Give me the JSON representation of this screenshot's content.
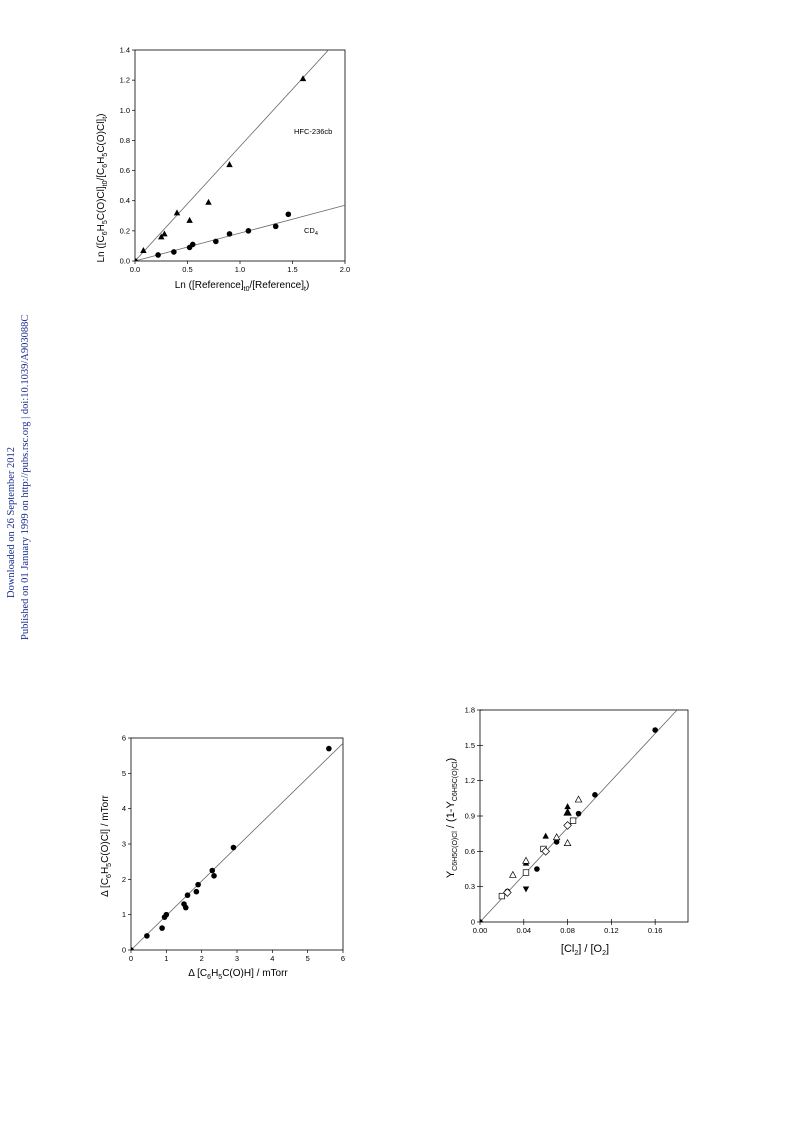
{
  "side_note": {
    "line1": "Downloaded on 26 September 2012",
    "line2": "Published on 01 January 1999 on http://pubs.rsc.org | doi:10.1039/A903088C"
  },
  "chart_data": [
    {
      "type": "scatter",
      "xlim": [
        0,
        2.0
      ],
      "ylim": [
        0,
        1.4
      ],
      "xticks": [
        "0.0",
        "0.5",
        "1.0",
        "1.5",
        "2.0"
      ],
      "yticks": [
        "0.0",
        "0.2",
        "0.4",
        "0.6",
        "0.8",
        "1.0",
        "1.2",
        "1.4"
      ],
      "grid": false,
      "series": [
        {
          "name": "HFC-236cb",
          "marker": "triangle",
          "points": [
            [
              0.08,
              0.07
            ],
            [
              0.25,
              0.16
            ],
            [
              0.28,
              0.18
            ],
            [
              0.4,
              0.32
            ],
            [
              0.52,
              0.27
            ],
            [
              0.7,
              0.39
            ],
            [
              0.9,
              0.64
            ],
            [
              1.6,
              1.21
            ]
          ],
          "fit": [
            [
              0,
              0
            ],
            [
              2.0,
              1.52
            ]
          ]
        },
        {
          "name": "CD4",
          "marker": "circle",
          "points": [
            [
              0.0,
              0.0
            ],
            [
              0.22,
              0.04
            ],
            [
              0.37,
              0.06
            ],
            [
              0.52,
              0.09
            ],
            [
              0.55,
              0.11
            ],
            [
              0.77,
              0.13
            ],
            [
              0.9,
              0.18
            ],
            [
              1.08,
              0.2
            ],
            [
              1.34,
              0.23
            ],
            [
              1.46,
              0.31
            ]
          ],
          "fit": [
            [
              0,
              0
            ],
            [
              2.0,
              0.37
            ]
          ]
        }
      ]
    },
    {
      "type": "scatter",
      "xlim": [
        0,
        6
      ],
      "ylim": [
        0,
        6
      ],
      "xticks": [
        "0",
        "1",
        "2",
        "3",
        "4",
        "5",
        "6"
      ],
      "yticks": [
        "0",
        "1",
        "2",
        "3",
        "4",
        "5",
        "6"
      ],
      "grid": false,
      "series": [
        {
          "marker": "circle",
          "points": [
            [
              0.0,
              0.0
            ],
            [
              0.45,
              0.4
            ],
            [
              0.88,
              0.62
            ],
            [
              0.95,
              0.93
            ],
            [
              1.0,
              1.0
            ],
            [
              1.5,
              1.3
            ],
            [
              1.55,
              1.2
            ],
            [
              1.6,
              1.55
            ],
            [
              1.85,
              1.65
            ],
            [
              1.9,
              1.85
            ],
            [
              2.3,
              2.25
            ],
            [
              2.35,
              2.1
            ],
            [
              2.9,
              2.9
            ],
            [
              5.6,
              5.7
            ]
          ],
          "fit": [
            [
              0,
              0
            ],
            [
              6.0,
              5.85
            ]
          ]
        }
      ]
    },
    {
      "type": "scatter",
      "xlim": [
        0,
        0.19
      ],
      "ylim": [
        0,
        1.8
      ],
      "xticks": [
        "0.00",
        "0.04",
        "0.08",
        "0.12",
        "0.16"
      ],
      "yticks": [
        "0",
        "0.3",
        "0.6",
        "0.9",
        "1.2",
        "1.5",
        "1.8"
      ],
      "grid": false,
      "series": [
        {
          "marker": "circle-filled",
          "points": [
            [
              0.0,
              0.0
            ],
            [
              0.025,
              0.26
            ],
            [
              0.052,
              0.45
            ],
            [
              0.07,
              0.68
            ],
            [
              0.09,
              0.92
            ],
            [
              0.105,
              1.08
            ],
            [
              0.16,
              1.63
            ]
          ]
        },
        {
          "marker": "triangle-filled",
          "points": [
            [
              0.042,
              0.5
            ],
            [
              0.06,
              0.73
            ],
            [
              0.08,
              0.98
            ]
          ]
        },
        {
          "marker": "triangle-down-filled",
          "points": [
            [
              0.042,
              0.28
            ]
          ]
        },
        {
          "marker": "triangle-open",
          "points": [
            [
              0.03,
              0.4
            ],
            [
              0.042,
              0.52
            ],
            [
              0.07,
              0.72
            ],
            [
              0.08,
              0.67
            ],
            [
              0.09,
              1.04
            ]
          ]
        },
        {
          "marker": "square-open",
          "points": [
            [
              0.02,
              0.22
            ],
            [
              0.042,
              0.42
            ],
            [
              0.058,
              0.62
            ],
            [
              0.085,
              0.86
            ]
          ]
        },
        {
          "marker": "diamond-open",
          "points": [
            [
              0.025,
              0.25
            ],
            [
              0.06,
              0.6
            ],
            [
              0.08,
              0.82
            ]
          ]
        },
        {
          "marker": "triangle-half",
          "points": [
            [
              0.08,
              0.93
            ]
          ]
        }
      ],
      "fit": [
        [
          0,
          0
        ],
        [
          0.18,
          1.8
        ]
      ]
    }
  ]
}
